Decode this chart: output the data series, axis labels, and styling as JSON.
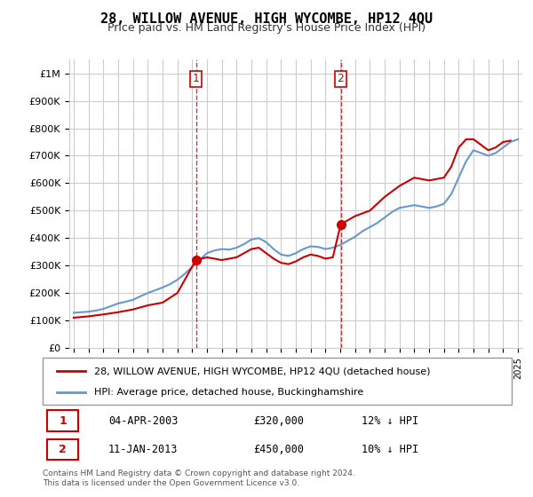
{
  "title": "28, WILLOW AVENUE, HIGH WYCOMBE, HP12 4QU",
  "subtitle": "Price paid vs. HM Land Registry's House Price Index (HPI)",
  "legend_label_red": "28, WILLOW AVENUE, HIGH WYCOMBE, HP12 4QU (detached house)",
  "legend_label_blue": "HPI: Average price, detached house, Buckinghamshire",
  "annotation1_label": "1",
  "annotation1_date": "04-APR-2003",
  "annotation1_price": "£320,000",
  "annotation1_hpi": "12% ↓ HPI",
  "annotation2_label": "2",
  "annotation2_date": "11-JAN-2013",
  "annotation2_price": "£450,000",
  "annotation2_hpi": "10% ↓ HPI",
  "footer": "Contains HM Land Registry data © Crown copyright and database right 2024.\nThis data is licensed under the Open Government Licence v3.0.",
  "ylim": [
    0,
    1050000
  ],
  "yticks": [
    0,
    100000,
    200000,
    300000,
    400000,
    500000,
    600000,
    700000,
    800000,
    900000,
    1000000
  ],
  "ytick_labels": [
    "£0",
    "£100K",
    "£200K",
    "£300K",
    "£400K",
    "£500K",
    "£600K",
    "£700K",
    "£800K",
    "£900K",
    "£1M"
  ],
  "x_start_year": 1995,
  "x_end_year": 2025,
  "red_color": "#cc0000",
  "blue_color": "#6699cc",
  "vline_color": "#cc0000",
  "grid_color": "#cccccc",
  "bg_color": "#ffffff",
  "sale1_year": 2003.25,
  "sale1_price": 320000,
  "sale2_year": 2013.03,
  "sale2_price": 450000,
  "hpi_years": [
    1995,
    1995.5,
    1996,
    1996.5,
    1997,
    1997.5,
    1998,
    1998.5,
    1999,
    1999.5,
    2000,
    2000.5,
    2001,
    2001.5,
    2002,
    2002.5,
    2003,
    2003.5,
    2004,
    2004.5,
    2005,
    2005.5,
    2006,
    2006.5,
    2007,
    2007.5,
    2008,
    2008.5,
    2009,
    2009.5,
    2010,
    2010.5,
    2011,
    2011.5,
    2012,
    2012.5,
    2013,
    2013.5,
    2014,
    2014.5,
    2015,
    2015.5,
    2016,
    2016.5,
    2017,
    2017.5,
    2018,
    2018.5,
    2019,
    2019.5,
    2020,
    2020.5,
    2021,
    2021.5,
    2022,
    2022.5,
    2023,
    2023.5,
    2024,
    2024.5,
    2025
  ],
  "hpi_values": [
    128000,
    130000,
    132000,
    136000,
    142000,
    152000,
    162000,
    168000,
    175000,
    188000,
    200000,
    210000,
    220000,
    232000,
    248000,
    270000,
    295000,
    320000,
    345000,
    355000,
    360000,
    358000,
    365000,
    378000,
    395000,
    400000,
    385000,
    360000,
    340000,
    335000,
    345000,
    360000,
    370000,
    368000,
    360000,
    365000,
    375000,
    390000,
    405000,
    425000,
    440000,
    455000,
    475000,
    495000,
    510000,
    515000,
    520000,
    515000,
    510000,
    515000,
    525000,
    560000,
    620000,
    680000,
    720000,
    710000,
    700000,
    710000,
    730000,
    750000,
    760000
  ],
  "red_years": [
    1995,
    1996,
    1997,
    1998,
    1999,
    2000,
    2001,
    2002,
    2003.25,
    2004,
    2005,
    2006,
    2007,
    2007.5,
    2008,
    2008.5,
    2009,
    2009.5,
    2010,
    2010.5,
    2011,
    2011.5,
    2012,
    2012.5,
    2013.03,
    2014,
    2015,
    2016,
    2017,
    2018,
    2018.5,
    2019,
    2019.5,
    2020,
    2020.5,
    2021,
    2021.5,
    2022,
    2022.5,
    2023,
    2023.5,
    2024,
    2024.5
  ],
  "red_values": [
    110000,
    115000,
    122000,
    130000,
    140000,
    155000,
    165000,
    200000,
    320000,
    330000,
    320000,
    330000,
    360000,
    365000,
    345000,
    325000,
    310000,
    305000,
    315000,
    330000,
    340000,
    335000,
    325000,
    330000,
    450000,
    480000,
    500000,
    550000,
    590000,
    620000,
    615000,
    610000,
    615000,
    620000,
    660000,
    730000,
    760000,
    760000,
    740000,
    720000,
    730000,
    750000,
    755000
  ]
}
